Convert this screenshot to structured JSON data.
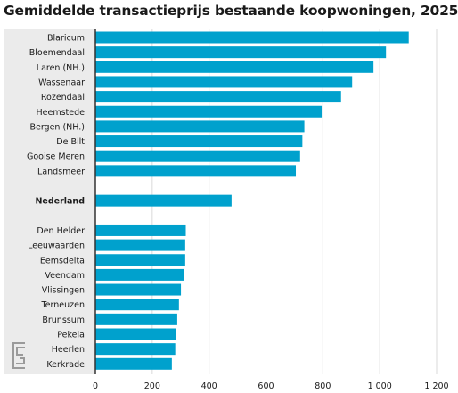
{
  "chart_data": {
    "type": "bar",
    "orientation": "horizontal",
    "title": "Gemiddelde transactieprijs bestaande koopwoningen, 2025",
    "categories": [
      "Blaricum",
      "Bloemendaal",
      "Laren (NH.)",
      "Wassenaar",
      "Rozendaal",
      "Heemstede",
      "Bergen (NH.)",
      "De Bilt",
      "Gooise Meren",
      "Landsmeer",
      "",
      "Nederland",
      "",
      "Den Helder",
      "Leeuwaarden",
      "Eemsdelta",
      "Veendam",
      "Vlissingen",
      "Terneuzen",
      "Brunssum",
      "Pekela",
      "Heerlen",
      "Kerkrade"
    ],
    "values": [
      1102,
      1022,
      978,
      903,
      864,
      796,
      735,
      728,
      720,
      705,
      null,
      479,
      null,
      318,
      316,
      316,
      312,
      301,
      294,
      288,
      284,
      281,
      269
    ],
    "bold_categories": [
      "Nederland"
    ],
    "xlim": [
      0,
      1200
    ],
    "xticks": [
      0,
      200,
      400,
      600,
      800,
      "1 000",
      "1 200"
    ],
    "bar_color": "#00a1cd",
    "panel_color": "#ebebeb",
    "grid": true
  },
  "logo": "cbs-logo-icon"
}
